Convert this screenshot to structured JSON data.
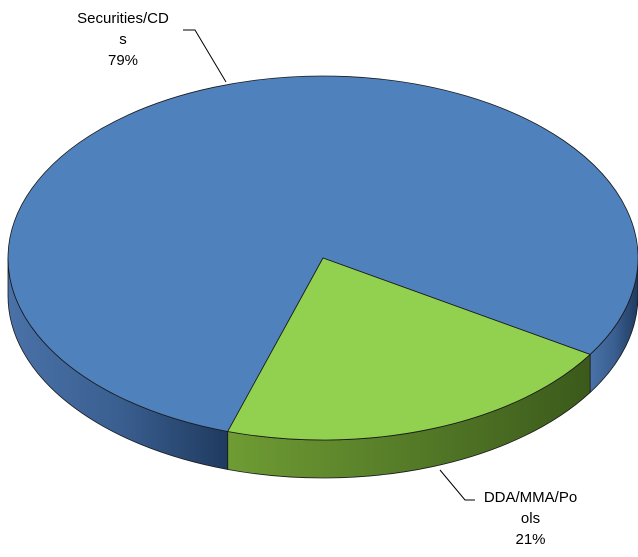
{
  "chart_data": {
    "type": "pie3d",
    "categories": [
      "Securities/CDs",
      "DDA/MMA/Pools"
    ],
    "values": [
      79,
      21
    ],
    "value_labels": [
      "79%",
      "21%"
    ],
    "colors": [
      "#4f81bd",
      "#92d050"
    ]
  }
}
